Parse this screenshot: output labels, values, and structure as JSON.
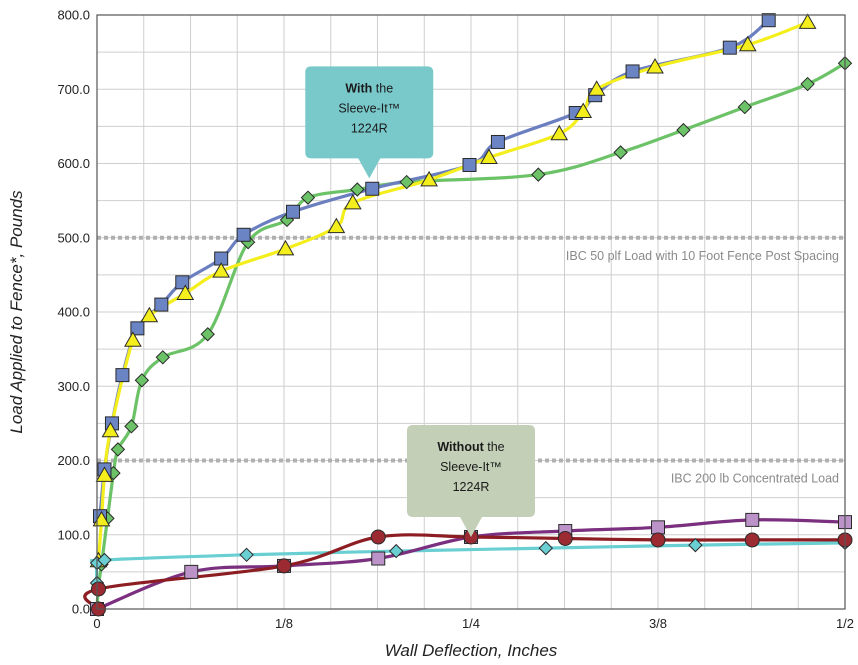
{
  "chart_data": {
    "type": "line",
    "title": "",
    "xlabel": "Wall Deflection, Inches",
    "ylabel": "Load Applied to Fence*, Pounds",
    "xlim": [
      0,
      0.5
    ],
    "ylim": [
      0,
      800
    ],
    "x_ticks": [
      {
        "value": 0,
        "label": "0"
      },
      {
        "value": 0.125,
        "label": "1/8"
      },
      {
        "value": 0.25,
        "label": "1/4"
      },
      {
        "value": 0.375,
        "label": "3/8"
      },
      {
        "value": 0.5,
        "label": "1/2"
      }
    ],
    "y_ticks": [
      {
        "value": 0,
        "label": "0.0"
      },
      {
        "value": 100,
        "label": "100.0"
      },
      {
        "value": 200,
        "label": "200.0"
      },
      {
        "value": 300,
        "label": "300.0"
      },
      {
        "value": 400,
        "label": "400.0"
      },
      {
        "value": 500,
        "label": "500.0"
      },
      {
        "value": 600,
        "label": "600.0"
      },
      {
        "value": 700,
        "label": "700.0"
      },
      {
        "value": 800,
        "label": "800.0"
      }
    ],
    "grid": true,
    "reference_lines": [
      {
        "y": 500,
        "label": "IBC 50 plf Load with 10 Foot Fence Post Spacing",
        "color": "#b0b0b0"
      },
      {
        "y": 200,
        "label": "IBC 200 lb Concentrated Load",
        "color": "#b0b0b0"
      }
    ],
    "annotations": [
      {
        "bold": "With",
        "rest": " the",
        "line2": "Sleeve-It™",
        "line3": "1224R",
        "fill": "#79c9cb",
        "pointer_x": 0.182,
        "pointer_y": 580
      },
      {
        "bold": "Without",
        "rest": " the",
        "line2": "Sleeve-It™",
        "line3": "1224R",
        "fill": "#c3cfb6",
        "pointer_x": 0.25,
        "pointer_y": 97
      }
    ],
    "series": [
      {
        "color": "#6b7fc0",
        "marker": "square",
        "marker_fill": "#6b84c4",
        "x": [
          0.002,
          0.005,
          0.01,
          0.017,
          0.027,
          0.043,
          0.057,
          0.083,
          0.098,
          0.131,
          0.184,
          0.249,
          0.268,
          0.32,
          0.333,
          0.358,
          0.423,
          0.449
        ],
        "y": [
          125,
          188,
          250,
          315,
          378,
          410,
          440,
          472,
          504,
          535,
          566,
          598,
          629,
          668,
          692,
          724,
          756,
          793
        ]
      },
      {
        "color": "#f4ee1c",
        "marker": "triangle",
        "marker_fill": "#f4ee1c",
        "x": [
          0.001,
          0.003,
          0.005,
          0.009,
          0.024,
          0.035,
          0.059,
          0.083,
          0.126,
          0.16,
          0.171,
          0.222,
          0.262,
          0.309,
          0.325,
          0.334,
          0.373,
          0.435,
          0.475
        ],
        "y": [
          65,
          120,
          180,
          240,
          362,
          395,
          425,
          455,
          485,
          515,
          547,
          578,
          608,
          640,
          670,
          700,
          730,
          760,
          790
        ]
      },
      {
        "color": "#6cc267",
        "marker": "diamond",
        "marker_fill": "#6cc267",
        "x": [
          0.0,
          0.001,
          0.003,
          0.007,
          0.011,
          0.014,
          0.023,
          0.03,
          0.044,
          0.074,
          0.101,
          0.127,
          0.141,
          0.174,
          0.207,
          0.295,
          0.35,
          0.392,
          0.433,
          0.475,
          0.5
        ],
        "y": [
          0,
          30,
          60,
          122,
          183,
          215,
          246,
          308,
          339,
          370,
          494,
          524,
          554,
          565,
          575,
          585,
          615,
          645,
          676,
          707,
          735
        ]
      },
      {
        "color": "#6acfd2",
        "marker": "diamond",
        "marker_fill": "#6acfd2",
        "x": [
          0.0,
          0.0,
          0.005,
          0.1,
          0.2,
          0.3,
          0.4,
          0.5
        ],
        "y": [
          35,
          62,
          66,
          73,
          78,
          82,
          86,
          89
        ]
      },
      {
        "color": "#8c1d22",
        "marker": "circle",
        "marker_fill": "#9c2a33",
        "x": [
          0.001,
          0.001,
          0.125,
          0.188,
          0.25,
          0.313,
          0.375,
          0.438,
          0.5
        ],
        "y": [
          0,
          27,
          58,
          97,
          97,
          95,
          93,
          93,
          93
        ]
      },
      {
        "color": "#7a2f7f",
        "marker": "square",
        "marker_fill": "#bb93c8",
        "x": [
          0.0,
          0.063,
          0.125,
          0.188,
          0.25,
          0.313,
          0.375,
          0.438,
          0.5
        ],
        "y": [
          0,
          50,
          58,
          68,
          97,
          105,
          110,
          120,
          117
        ]
      }
    ]
  }
}
